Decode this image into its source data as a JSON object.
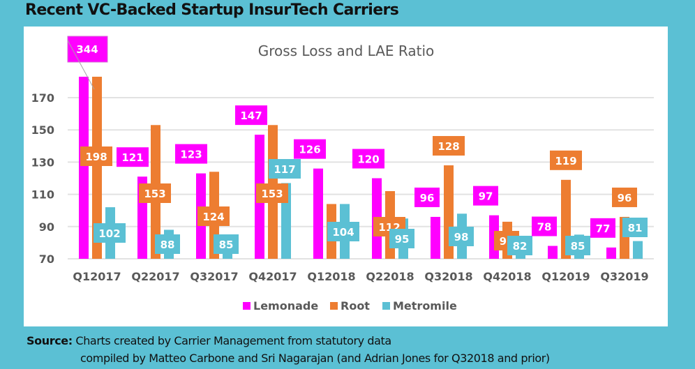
{
  "page_title": "Recent VC-Backed Startup InsurTech Carriers",
  "source": {
    "label": "Source:",
    "line1": "Charts created by Carrier Management from statutory data",
    "line2": "compiled by Matteo Carbone and Sri Nagarajan (and Adrian Jones for Q32018 and prior)"
  },
  "chart_data": {
    "type": "bar",
    "title": "Gross Loss and LAE Ratio",
    "xlabel": "",
    "ylabel": "",
    "ylim": [
      70,
      184
    ],
    "yticks": [
      70,
      90,
      110,
      130,
      150,
      170
    ],
    "grid": true,
    "legend_position": "bottom",
    "categories": [
      "Q12017",
      "Q22017",
      "Q32017",
      "Q42017",
      "Q12018",
      "Q22018",
      "Q32018",
      "Q42018",
      "Q12019",
      "Q32019"
    ],
    "series": [
      {
        "name": "Lemonade",
        "color": "#ff00ff",
        "values": [
          344,
          121,
          123,
          147,
          126,
          120,
          96,
          97,
          78,
          77
        ]
      },
      {
        "name": "Root",
        "color": "#ed7d31",
        "values": [
          198,
          153,
          124,
          153,
          104,
          112,
          128,
          93,
          119,
          96
        ]
      },
      {
        "name": "Metromile",
        "color": "#5bc0d4",
        "values": [
          102,
          88,
          85,
          117,
          104,
          95,
          98,
          82,
          85,
          81
        ]
      }
    ],
    "notes": "Values above axis max (344, 198) are shown as truncated bars; Lemonade 344 label has a leader line."
  }
}
